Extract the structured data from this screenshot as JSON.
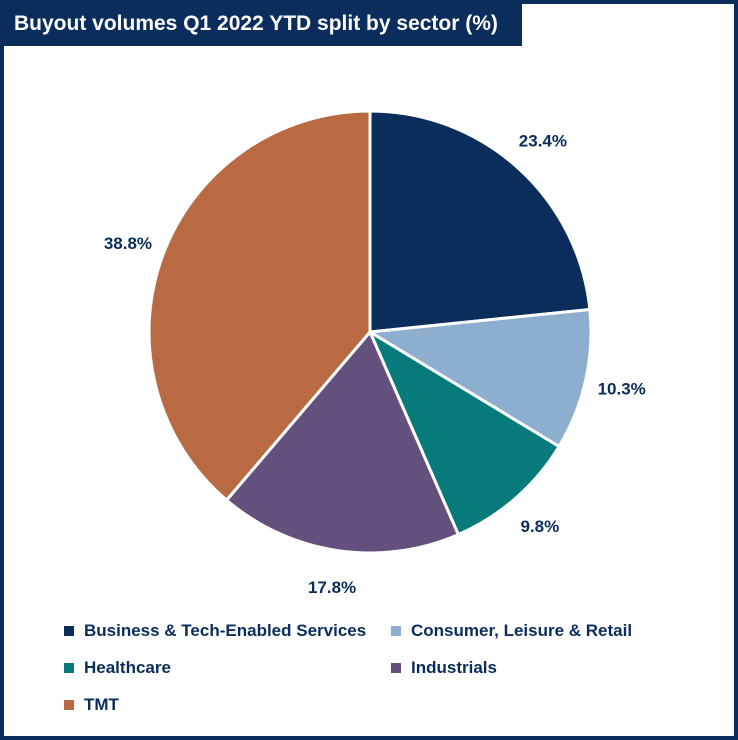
{
  "chart_data": {
    "type": "pie",
    "title": "Buyout volumes Q1 2022 YTD split by sector (%)",
    "categories": [
      "Business & Tech-Enabled Services",
      "Consumer, Leisure & Retail",
      "Healthcare",
      "Industrials",
      "TMT"
    ],
    "values": [
      23.4,
      10.3,
      9.8,
      17.8,
      38.8
    ],
    "data_labels": [
      "23.4%",
      "10.3%",
      "9.8%",
      "17.8%",
      "38.8%"
    ],
    "colors": [
      "#0b2d5b",
      "#8eaed0",
      "#077b7b",
      "#64507d",
      "#b96a43"
    ],
    "label_color": "#0b2d5b",
    "legend_position": "bottom"
  }
}
